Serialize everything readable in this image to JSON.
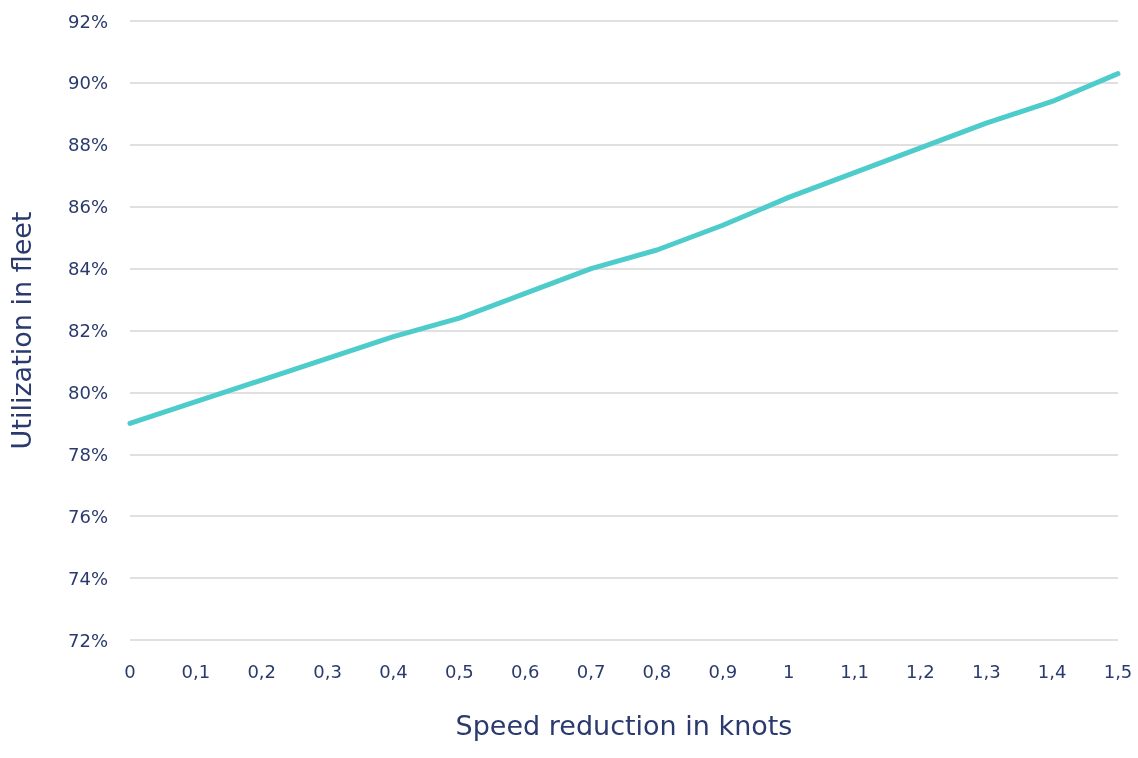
{
  "chart_data": {
    "type": "line",
    "xlabel": "Speed reduction in knots",
    "ylabel": "Utilization in fleet",
    "categories": [
      "0",
      "0,1",
      "0,2",
      "0,3",
      "0,4",
      "0,5",
      "0,6",
      "0,7",
      "0,8",
      "0,9",
      "1",
      "1,1",
      "1,2",
      "1,3",
      "1,4",
      "1,5"
    ],
    "series": [
      {
        "color": "#4ecbcb",
        "values": [
          79.0,
          79.7,
          80.4,
          81.1,
          81.8,
          82.4,
          83.2,
          84.0,
          84.6,
          85.4,
          86.3,
          87.1,
          87.9,
          88.7,
          89.4,
          90.3
        ]
      }
    ],
    "ylim": [
      72,
      92
    ],
    "yticks": [
      {
        "value": 72,
        "label": "72%"
      },
      {
        "value": 74,
        "label": "74%"
      },
      {
        "value": 76,
        "label": "76%"
      },
      {
        "value": 78,
        "label": "78%"
      },
      {
        "value": 80,
        "label": "80%"
      },
      {
        "value": 82,
        "label": "82%"
      },
      {
        "value": 84,
        "label": "84%"
      },
      {
        "value": 86,
        "label": "86%"
      },
      {
        "value": 88,
        "label": "88%"
      },
      {
        "value": 90,
        "label": "90%"
      },
      {
        "value": 92,
        "label": "92%"
      }
    ],
    "grid": "y",
    "marker": "none",
    "line_style": "solid"
  }
}
